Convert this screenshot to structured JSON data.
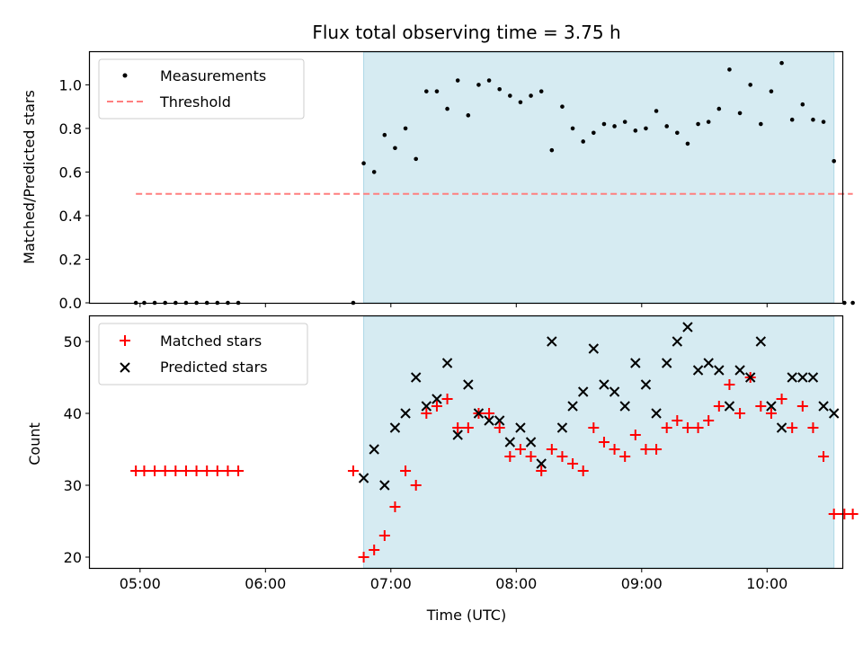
{
  "colors": {
    "measurement": "#000000",
    "threshold": "#ff7f7f",
    "matched": "#ff0000",
    "predicted": "#000000",
    "observing_span": "#add8e6"
  },
  "chart_data": [
    {
      "type": "scatter",
      "title": "Flux total observing time = 3.75 h",
      "xlabel": "",
      "ylabel": "Matched/Predicted stars",
      "ylim": [
        0,
        1.15
      ],
      "xlim": [
        "04:36",
        "10:36"
      ],
      "x_ticks": [
        "05:00",
        "06:00",
        "07:00",
        "08:00",
        "09:00",
        "10:00"
      ],
      "y_ticks": [
        "0.0",
        "0.2",
        "0.4",
        "0.6",
        "0.8",
        "1.0"
      ],
      "legend": {
        "placement": "top-left",
        "entries": [
          "Measurements",
          "Threshold"
        ]
      },
      "shaded_span": [
        "06:47",
        "10:32"
      ],
      "threshold": {
        "value": 0.5,
        "x_range": [
          "04:58",
          "10:41"
        ]
      },
      "series": [
        {
          "name": "Measurements",
          "marker": "dot",
          "x": [
            "04:58",
            "05:02",
            "05:07",
            "05:12",
            "05:17",
            "05:22",
            "05:27",
            "05:32",
            "05:37",
            "05:42",
            "05:47",
            "06:42",
            "06:47",
            "06:52",
            "06:57",
            "07:02",
            "07:07",
            "07:12",
            "07:17",
            "07:22",
            "07:27",
            "07:32",
            "07:37",
            "07:42",
            "07:47",
            "07:52",
            "07:57",
            "08:02",
            "08:07",
            "08:12",
            "08:17",
            "08:22",
            "08:27",
            "08:32",
            "08:37",
            "08:42",
            "08:47",
            "08:52",
            "08:57",
            "09:02",
            "09:07",
            "09:12",
            "09:17",
            "09:22",
            "09:27",
            "09:32",
            "09:37",
            "09:42",
            "09:47",
            "09:52",
            "09:57",
            "10:02",
            "10:07",
            "10:12",
            "10:17",
            "10:22",
            "10:27",
            "10:32",
            "10:37",
            "10:41"
          ],
          "y": [
            0,
            0,
            0,
            0,
            0,
            0,
            0,
            0,
            0,
            0,
            0,
            0,
            0.64,
            0.6,
            0.77,
            0.71,
            0.8,
            0.66,
            0.97,
            0.97,
            0.89,
            1.02,
            0.86,
            1.0,
            1.02,
            0.98,
            0.95,
            0.92,
            0.95,
            0.97,
            0.7,
            0.9,
            0.8,
            0.74,
            0.78,
            0.82,
            0.81,
            0.83,
            0.79,
            0.8,
            0.88,
            0.81,
            0.78,
            0.73,
            0.82,
            0.83,
            0.89,
            1.07,
            0.87,
            1.0,
            0.82,
            0.97,
            1.1,
            0.84,
            0.91,
            0.84,
            0.83,
            0.65,
            0,
            0
          ]
        }
      ]
    },
    {
      "type": "scatter",
      "title": "",
      "xlabel": "Time (UTC)",
      "ylabel": "Count",
      "ylim": [
        18.5,
        53.5
      ],
      "xlim": [
        "04:36",
        "10:36"
      ],
      "x_ticks": [
        "05:00",
        "06:00",
        "07:00",
        "08:00",
        "09:00",
        "10:00"
      ],
      "y_ticks": [
        "20",
        "30",
        "40",
        "50"
      ],
      "legend": {
        "placement": "top-left",
        "entries": [
          "Matched stars",
          "Predicted stars"
        ]
      },
      "shaded_span": [
        "06:47",
        "10:32"
      ],
      "series": [
        {
          "name": "Matched stars",
          "marker": "plus",
          "x": [
            "04:58",
            "05:02",
            "05:07",
            "05:12",
            "05:17",
            "05:22",
            "05:27",
            "05:32",
            "05:37",
            "05:42",
            "05:47",
            "06:42",
            "06:47",
            "06:52",
            "06:57",
            "07:02",
            "07:07",
            "07:12",
            "07:17",
            "07:22",
            "07:27",
            "07:32",
            "07:37",
            "07:42",
            "07:47",
            "07:52",
            "07:57",
            "08:02",
            "08:07",
            "08:12",
            "08:17",
            "08:22",
            "08:27",
            "08:32",
            "08:37",
            "08:42",
            "08:47",
            "08:52",
            "08:57",
            "09:02",
            "09:07",
            "09:12",
            "09:17",
            "09:22",
            "09:27",
            "09:32",
            "09:37",
            "09:42",
            "09:47",
            "09:52",
            "09:57",
            "10:02",
            "10:07",
            "10:12",
            "10:17",
            "10:22",
            "10:27",
            "10:32",
            "10:37",
            "10:41"
          ],
          "y": [
            32,
            32,
            32,
            32,
            32,
            32,
            32,
            32,
            32,
            32,
            32,
            32,
            20,
            21,
            23,
            27,
            32,
            30,
            40,
            41,
            42,
            38,
            38,
            40,
            40,
            38,
            34,
            35,
            34,
            32,
            35,
            34,
            33,
            32,
            38,
            36,
            35,
            34,
            37,
            35,
            35,
            38,
            39,
            38,
            38,
            39,
            41,
            44,
            40,
            45,
            41,
            40,
            42,
            38,
            41,
            38,
            34,
            26,
            26,
            26
          ]
        },
        {
          "name": "Predicted stars",
          "marker": "x",
          "x": [
            "06:47",
            "06:52",
            "06:57",
            "07:02",
            "07:07",
            "07:12",
            "07:17",
            "07:22",
            "07:27",
            "07:32",
            "07:37",
            "07:42",
            "07:47",
            "07:52",
            "07:57",
            "08:02",
            "08:07",
            "08:12",
            "08:17",
            "08:22",
            "08:27",
            "08:32",
            "08:37",
            "08:42",
            "08:47",
            "08:52",
            "08:57",
            "09:02",
            "09:07",
            "09:12",
            "09:17",
            "09:22",
            "09:27",
            "09:32",
            "09:37",
            "09:42",
            "09:47",
            "09:52",
            "09:57",
            "10:02",
            "10:07",
            "10:12",
            "10:17",
            "10:22",
            "10:27",
            "10:32"
          ],
          "y": [
            31,
            35,
            30,
            38,
            40,
            45,
            41,
            42,
            47,
            37,
            44,
            40,
            39,
            39,
            36,
            38,
            36,
            33,
            50,
            38,
            41,
            43,
            49,
            44,
            43,
            41,
            47,
            44,
            40,
            47,
            50,
            52,
            46,
            47,
            46,
            41,
            46,
            45,
            50,
            41,
            38,
            45,
            45,
            45,
            41,
            40
          ]
        }
      ]
    }
  ]
}
